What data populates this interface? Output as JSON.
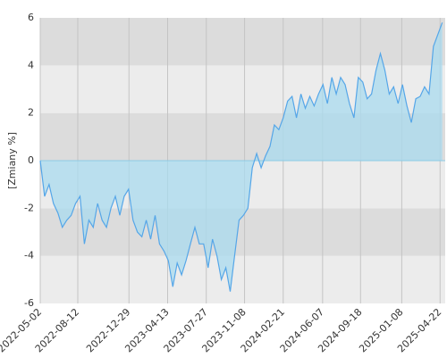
{
  "chart_data": {
    "type": "area",
    "y_label": "[Zmiany %]",
    "x": [
      "2022-05-02",
      "2022-05-14",
      "2022-05-26",
      "2022-06-07",
      "2022-06-19",
      "2022-07-01",
      "2022-07-13",
      "2022-07-25",
      "2022-08-06",
      "2022-08-18",
      "2022-08-30",
      "2022-09-11",
      "2022-09-23",
      "2022-10-05",
      "2022-10-17",
      "2022-10-29",
      "2022-11-10",
      "2022-11-22",
      "2022-12-04",
      "2022-12-16",
      "2022-12-28",
      "2023-01-09",
      "2023-01-21",
      "2023-02-02",
      "2023-02-14",
      "2023-02-26",
      "2023-03-10",
      "2023-03-22",
      "2023-04-03",
      "2023-04-15",
      "2023-04-27",
      "2023-05-09",
      "2023-05-21",
      "2023-06-02",
      "2023-06-14",
      "2023-06-26",
      "2023-07-08",
      "2023-07-20",
      "2023-08-01",
      "2023-08-13",
      "2023-08-25",
      "2023-09-06",
      "2023-09-18",
      "2023-09-30",
      "2023-10-12",
      "2023-10-24",
      "2023-11-05",
      "2023-11-17",
      "2023-11-29",
      "2023-12-11",
      "2023-12-23",
      "2024-01-04",
      "2024-01-16",
      "2024-01-28",
      "2024-02-09",
      "2024-02-21",
      "2024-03-04",
      "2024-03-16",
      "2024-03-28",
      "2024-04-09",
      "2024-04-21",
      "2024-05-03",
      "2024-05-15",
      "2024-05-27",
      "2024-06-08",
      "2024-06-20",
      "2024-07-02",
      "2024-07-14",
      "2024-07-26",
      "2024-08-07",
      "2024-08-19",
      "2024-08-31",
      "2024-09-12",
      "2024-09-24",
      "2024-10-06",
      "2024-10-18",
      "2024-10-30",
      "2024-11-11",
      "2024-11-23",
      "2024-12-05",
      "2024-12-17",
      "2024-12-29",
      "2025-01-10",
      "2025-01-22",
      "2025-02-03",
      "2025-02-15",
      "2025-02-27",
      "2025-03-11",
      "2025-03-23",
      "2025-04-04",
      "2025-04-28"
    ],
    "series": [
      {
        "color": "#55a6e8",
        "fill": "#a9dbef",
        "values": [
          0,
          -1.5,
          -1,
          -1.8,
          -2.2,
          -2.8,
          -2.5,
          -2.3,
          -1.8,
          -1.5,
          -3.5,
          -2.5,
          -2.8,
          -1.8,
          -2.5,
          -2.8,
          -2,
          -1.5,
          -2.3,
          -1.5,
          -1.2,
          -2.5,
          -3,
          -3.2,
          -2.5,
          -3.3,
          -2.3,
          -3.5,
          -3.8,
          -4.2,
          -5.3,
          -4.3,
          -4.8,
          -4.2,
          -3.5,
          -2.8,
          -3.5,
          -3.5,
          -4.5,
          -3.3,
          -4,
          -5,
          -4.5,
          -5.5,
          -4,
          -2.5,
          -2.3,
          -2,
          -0.3,
          0.3,
          -0.3,
          0.2,
          0.6,
          1.5,
          1.3,
          1.8,
          2.5,
          2.7,
          1.8,
          2.8,
          2.2,
          2.7,
          2.3,
          2.8,
          3.2,
          2.4,
          3.5,
          2.8,
          3.5,
          3.2,
          2.4,
          1.8,
          3.5,
          3.3,
          2.6,
          2.8,
          3.8,
          4.5,
          3.8,
          2.8,
          3.1,
          2.4,
          3.2,
          2.3,
          1.6,
          2.6,
          2.7,
          3.1,
          2.8,
          4.8,
          5.8
        ]
      }
    ],
    "xlim": [
      "2022-05-02",
      "2025-05-06"
    ],
    "xticks": [
      "2022-05-02",
      "2022-08-12",
      "2022-12-29",
      "2023-04-13",
      "2023-07-27",
      "2023-11-08",
      "2024-02-21",
      "2024-06-07",
      "2024-09-18",
      "2025-01-08",
      "2025-04-22"
    ],
    "ylim": [
      -6,
      6
    ],
    "yticks": [
      -6,
      -4,
      -2,
      0,
      2,
      4,
      6
    ],
    "grid": true
  }
}
